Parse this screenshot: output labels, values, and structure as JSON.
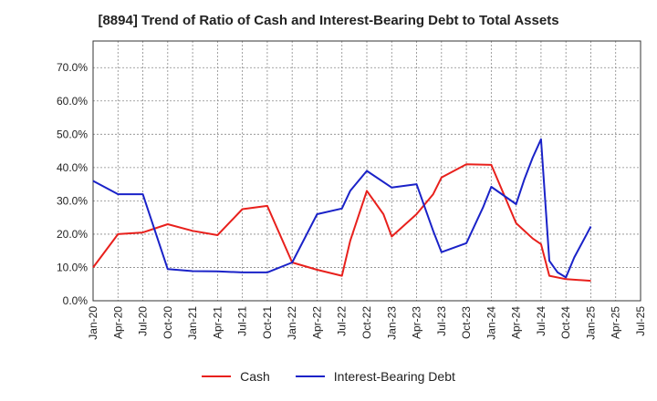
{
  "chart_data": {
    "type": "line",
    "title": "[8894]  Trend of Ratio of Cash and Interest-Bearing Debt to Total Assets",
    "xlabel": "",
    "ylabel": "",
    "ylim": [
      0,
      0.78
    ],
    "yticks": [
      0,
      0.1,
      0.2,
      0.3,
      0.4,
      0.5,
      0.6,
      0.7
    ],
    "ytick_labels": [
      "0.0%",
      "10.0%",
      "20.0%",
      "30.0%",
      "40.0%",
      "50.0%",
      "60.0%",
      "70.0%"
    ],
    "xticks": [
      "2020-01",
      "2020-04",
      "2020-07",
      "2020-10",
      "2021-01",
      "2021-04",
      "2021-07",
      "2021-10",
      "2022-01",
      "2022-04",
      "2022-07",
      "2022-10",
      "2023-01",
      "2023-04",
      "2023-07",
      "2023-10",
      "2024-01",
      "2024-04",
      "2024-07",
      "2024-10",
      "2025-01",
      "2025-04",
      "2025-07"
    ],
    "xtick_labels": [
      "Jan-20",
      "Apr-20",
      "Jul-20",
      "Oct-20",
      "Jan-21",
      "Apr-21",
      "Jul-21",
      "Oct-21",
      "Jan-22",
      "Apr-22",
      "Jul-22",
      "Oct-22",
      "Jan-23",
      "Apr-23",
      "Jul-23",
      "Oct-23",
      "Jan-24",
      "Apr-24",
      "Jul-24",
      "Oct-24",
      "Jan-25",
      "Apr-25",
      "Jul-25"
    ],
    "grid": true,
    "legend_position": "bottom",
    "series": [
      {
        "name": "Cash",
        "color": "#e8201c",
        "x": [
          "2020-01",
          "2020-04",
          "2020-07",
          "2020-10",
          "2021-01",
          "2021-04",
          "2021-07",
          "2021-10",
          "2022-01",
          "2022-04",
          "2022-07",
          "2022-08",
          "2022-10",
          "2022-12",
          "2023-01",
          "2023-04",
          "2023-06",
          "2023-07",
          "2023-10",
          "2024-01",
          "2024-04",
          "2024-06",
          "2024-07",
          "2024-08",
          "2024-10",
          "2025-01"
        ],
        "values": [
          0.1,
          0.2,
          0.205,
          0.23,
          0.21,
          0.197,
          0.275,
          0.285,
          0.115,
          0.093,
          0.075,
          0.18,
          0.33,
          0.26,
          0.193,
          0.26,
          0.32,
          0.37,
          0.41,
          0.408,
          0.233,
          0.187,
          0.17,
          0.075,
          0.065,
          0.06
        ]
      },
      {
        "name": "Interest-Bearing Debt",
        "color": "#1a22c8",
        "x": [
          "2020-01",
          "2020-04",
          "2020-07",
          "2020-10",
          "2021-01",
          "2021-04",
          "2021-07",
          "2021-10",
          "2022-01",
          "2022-04",
          "2022-07",
          "2022-08",
          "2022-10",
          "2023-01",
          "2023-04",
          "2023-06",
          "2023-07",
          "2023-10",
          "2023-12",
          "2024-01",
          "2024-04",
          "2024-05",
          "2024-06",
          "2024-07",
          "2024-08",
          "2024-09",
          "2024-10",
          "2024-11",
          "2025-01"
        ],
        "values": [
          0.36,
          0.32,
          0.32,
          0.095,
          0.089,
          0.088,
          0.085,
          0.085,
          0.115,
          0.26,
          0.277,
          0.33,
          0.39,
          0.34,
          0.35,
          0.21,
          0.146,
          0.173,
          0.28,
          0.342,
          0.29,
          0.365,
          0.43,
          0.485,
          0.12,
          0.085,
          0.07,
          0.13,
          0.223
        ]
      }
    ]
  }
}
